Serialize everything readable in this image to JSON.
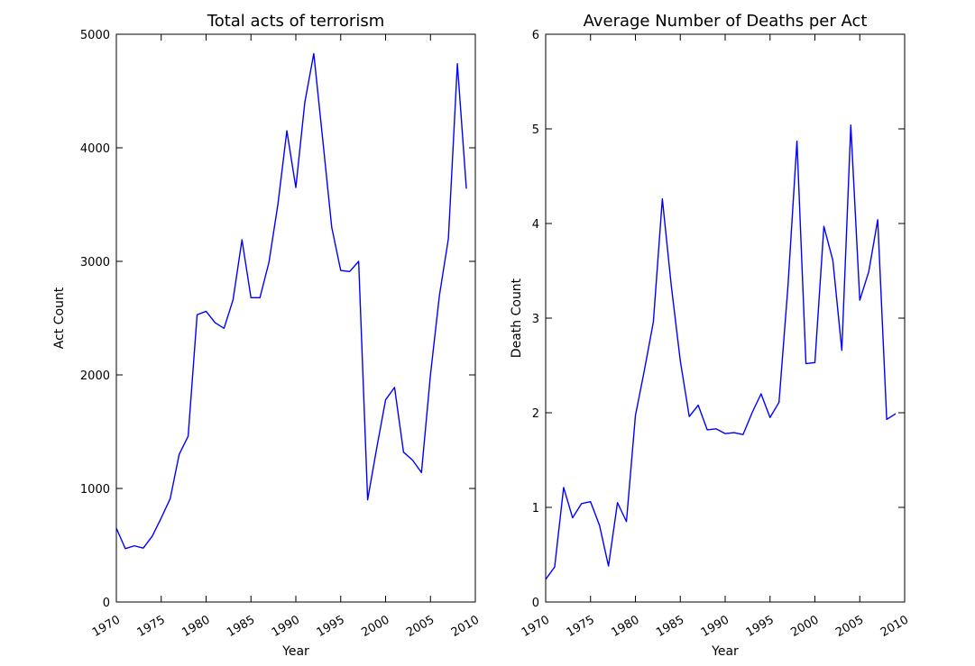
{
  "chart_data": [
    {
      "type": "line",
      "title": "Total acts of terrorism",
      "xlabel": "Year",
      "ylabel": "Act Count",
      "xlim": [
        1970,
        2010
      ],
      "ylim": [
        0,
        5000
      ],
      "xticks": [
        1970,
        1975,
        1980,
        1985,
        1990,
        1995,
        2000,
        2005,
        2010
      ],
      "yticks": [
        0,
        1000,
        2000,
        3000,
        4000,
        5000
      ],
      "grid": false,
      "color": "#0000ff",
      "x": [
        1970,
        1971,
        1972,
        1973,
        1974,
        1975,
        1976,
        1977,
        1978,
        1979,
        1980,
        1981,
        1982,
        1983,
        1984,
        1985,
        1986,
        1987,
        1988,
        1989,
        1990,
        1991,
        1992,
        1993,
        1994,
        1995,
        1996,
        1997,
        1998,
        1999,
        2000,
        2001,
        2002,
        2003,
        2004,
        2005,
        2006,
        2007,
        2008,
        2009
      ],
      "y": [
        650,
        470,
        495,
        475,
        580,
        740,
        910,
        1300,
        1460,
        2530,
        2560,
        2460,
        2410,
        2660,
        3190,
        2680,
        2680,
        2990,
        3500,
        4150,
        3650,
        4400,
        4830,
        4070,
        3300,
        2920,
        2910,
        3000,
        900,
        1350,
        1780,
        1890,
        1320,
        1250,
        1140,
        2000,
        2700,
        3200,
        4740,
        3640
      ]
    },
    {
      "type": "line",
      "title": "Average Number of Deaths per Act",
      "xlabel": "Year",
      "ylabel": "Death Count",
      "xlim": [
        1970,
        2010
      ],
      "ylim": [
        0,
        6
      ],
      "xticks": [
        1970,
        1975,
        1980,
        1985,
        1990,
        1995,
        2000,
        2005,
        2010
      ],
      "yticks": [
        0,
        1,
        2,
        3,
        4,
        5,
        6
      ],
      "grid": false,
      "color": "#0000ff",
      "x": [
        1970,
        1971,
        1972,
        1973,
        1974,
        1975,
        1976,
        1977,
        1978,
        1979,
        1980,
        1981,
        1982,
        1983,
        1984,
        1985,
        1986,
        1987,
        1988,
        1989,
        1990,
        1991,
        1992,
        1993,
        1994,
        1995,
        1996,
        1997,
        1998,
        1999,
        2000,
        2001,
        2002,
        2003,
        2004,
        2005,
        2006,
        2007,
        2008,
        2009
      ],
      "y": [
        0.24,
        0.37,
        1.21,
        0.89,
        1.04,
        1.06,
        0.81,
        0.38,
        1.05,
        0.85,
        1.97,
        2.45,
        2.96,
        4.26,
        3.34,
        2.55,
        1.96,
        2.08,
        1.82,
        1.83,
        1.78,
        1.79,
        1.77,
        2.0,
        2.2,
        1.95,
        2.11,
        3.34,
        4.87,
        2.52,
        2.53,
        3.97,
        3.61,
        2.66,
        5.04,
        3.19,
        3.49,
        4.04,
        1.93,
        1.99
      ]
    }
  ]
}
